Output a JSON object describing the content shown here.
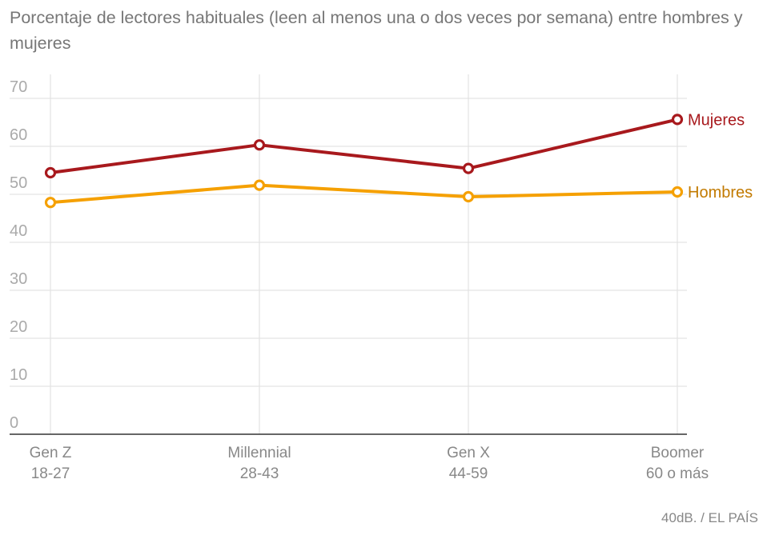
{
  "chart_data": {
    "type": "line",
    "title": "Porcentaje de lectores habituales (leen al menos una o dos veces por semana) entre hombres y mujeres",
    "categories": [
      {
        "name": "Gen Z",
        "range": "18-27"
      },
      {
        "name": "Millennial",
        "range": "28-43"
      },
      {
        "name": "Gen X",
        "range": "44-59"
      },
      {
        "name": "Boomer",
        "range": "60 o más"
      }
    ],
    "series": [
      {
        "name": "Mujeres",
        "color": "#a8191d",
        "values": [
          54.5,
          60.3,
          55.4,
          65.6
        ]
      },
      {
        "name": "Hombres",
        "color": "#f5a000",
        "values": [
          48.3,
          51.9,
          49.5,
          50.5
        ]
      }
    ],
    "ylim": [
      0,
      70
    ],
    "yticks": [
      0,
      10,
      20,
      30,
      40,
      50,
      60,
      70
    ],
    "grid": true,
    "legend": "labels at line ends"
  },
  "source": "40dB. / EL PAÍS"
}
